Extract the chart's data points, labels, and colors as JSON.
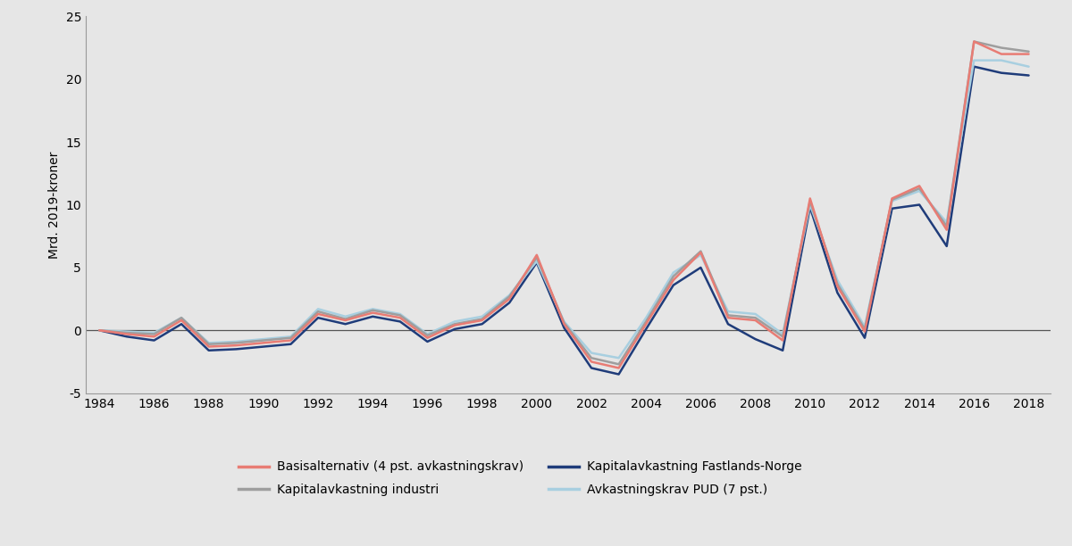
{
  "years": [
    1984,
    1985,
    1986,
    1987,
    1988,
    1989,
    1990,
    1991,
    1992,
    1993,
    1994,
    1995,
    1996,
    1997,
    1998,
    1999,
    2000,
    2001,
    2002,
    2003,
    2004,
    2005,
    2006,
    2007,
    2008,
    2009,
    2010,
    2011,
    2012,
    2013,
    2014,
    2015,
    2016,
    2017,
    2018
  ],
  "basis": [
    0.0,
    -0.3,
    -0.5,
    0.8,
    -1.3,
    -1.2,
    -1.0,
    -0.8,
    1.3,
    0.8,
    1.4,
    1.0,
    -0.6,
    0.4,
    0.8,
    2.5,
    6.0,
    0.5,
    -2.5,
    -3.0,
    0.5,
    4.0,
    6.2,
    1.0,
    0.8,
    -0.8,
    10.5,
    3.5,
    -0.1,
    10.5,
    11.5,
    8.0,
    23.0,
    22.0,
    22.0
  ],
  "industri": [
    0.0,
    -0.2,
    -0.3,
    1.0,
    -1.1,
    -1.0,
    -0.8,
    -0.6,
    1.5,
    0.9,
    1.6,
    1.2,
    -0.4,
    0.5,
    0.9,
    2.7,
    5.8,
    0.6,
    -2.2,
    -2.7,
    0.7,
    4.3,
    6.3,
    1.2,
    1.0,
    -0.5,
    10.3,
    3.7,
    0.1,
    10.4,
    11.3,
    8.3,
    23.0,
    22.5,
    22.2
  ],
  "fastlands": [
    0.0,
    -0.5,
    -0.8,
    0.5,
    -1.6,
    -1.5,
    -1.3,
    -1.1,
    1.0,
    0.5,
    1.1,
    0.7,
    -0.9,
    0.1,
    0.5,
    2.2,
    5.4,
    0.2,
    -3.0,
    -3.5,
    0.1,
    3.6,
    5.0,
    0.5,
    -0.7,
    -1.6,
    9.8,
    3.0,
    -0.6,
    9.7,
    10.0,
    6.7,
    21.0,
    20.5,
    20.3
  ],
  "pud": [
    0.0,
    -0.1,
    -0.2,
    1.0,
    -1.0,
    -0.9,
    -0.7,
    -0.5,
    1.7,
    1.1,
    1.7,
    1.3,
    -0.3,
    0.7,
    1.1,
    2.8,
    5.5,
    0.7,
    -1.8,
    -2.2,
    1.0,
    4.6,
    6.0,
    1.5,
    1.3,
    -0.3,
    10.0,
    4.0,
    0.3,
    10.3,
    11.1,
    8.6,
    21.5,
    21.5,
    21.0
  ],
  "basis_color": "#e87c74",
  "industri_color": "#9e9e9e",
  "fastlands_color": "#1f3c7a",
  "pud_color": "#a8cfe0",
  "background_color": "#e6e6e6",
  "plot_bg_color": "#e6e6e6",
  "ylabel": "Mrd. 2019-kroner",
  "ylim": [
    -5,
    25
  ],
  "yticks": [
    -5,
    0,
    5,
    10,
    15,
    20,
    25
  ],
  "xticks": [
    1984,
    1986,
    1988,
    1990,
    1992,
    1994,
    1996,
    1998,
    2000,
    2002,
    2004,
    2006,
    2008,
    2010,
    2012,
    2014,
    2016,
    2018
  ],
  "legend_basis": "Basisalternativ (4 pst. avkastningskrav)",
  "legend_industri": "Kapitalavkastning industri",
  "legend_fastlands": "Kapitalavkastning Fastlands-Norge",
  "legend_pud": "Avkastningskrav PUD (7 pst.)",
  "linewidth": 1.8,
  "zero_line_color": "#555555",
  "spine_color": "#999999"
}
